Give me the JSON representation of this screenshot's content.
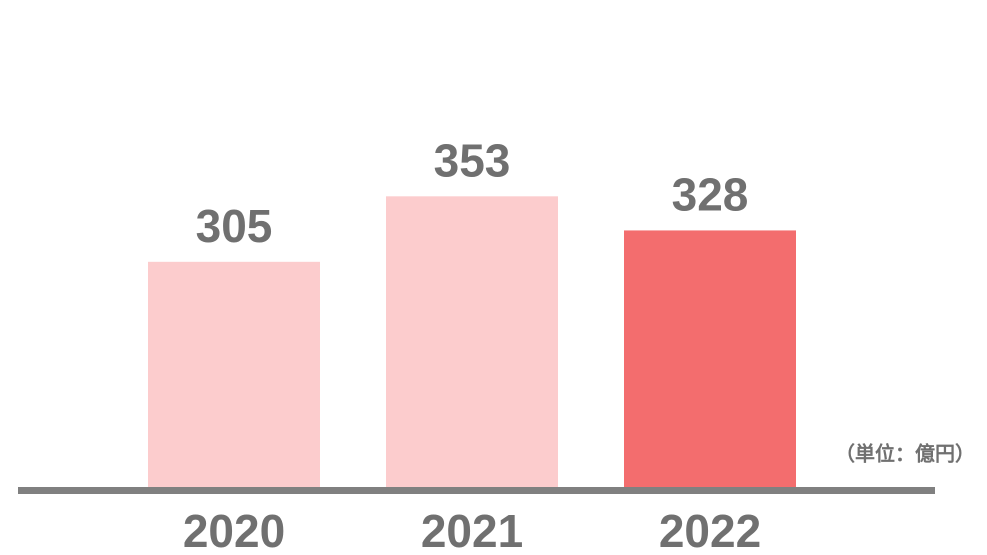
{
  "chart_data": {
    "type": "bar",
    "categories": [
      "2020",
      "2021",
      "2022"
    ],
    "values": [
      305,
      353,
      328
    ],
    "colors": [
      "#fccccd",
      "#fccccd",
      "#f36d6e"
    ],
    "ylim": [
      140,
      480
    ],
    "annotation": "（単位：億円）"
  }
}
